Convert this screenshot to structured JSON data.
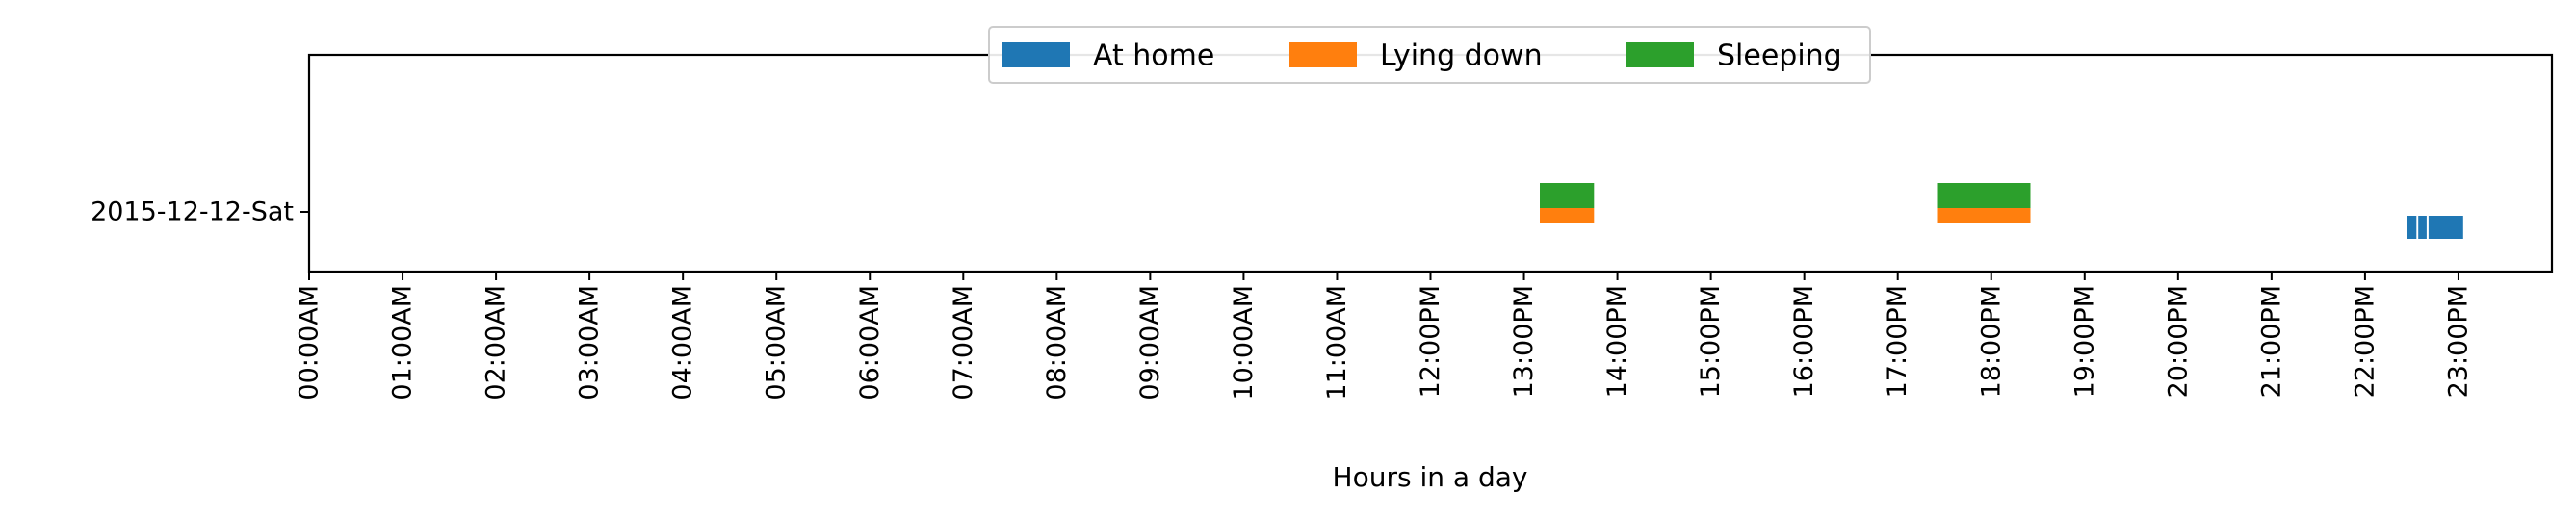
{
  "chart_data": {
    "type": "broken-barh",
    "title": "",
    "xlabel": "Hours in a day",
    "ylabel": "",
    "xlim": [
      0,
      24
    ],
    "x_unit": "hour of day",
    "x_tick_labels": [
      "00:00AM",
      "01:00AM",
      "02:00AM",
      "03:00AM",
      "04:00AM",
      "05:00AM",
      "06:00AM",
      "07:00AM",
      "08:00AM",
      "09:00AM",
      "10:00AM",
      "11:00AM",
      "12:00PM",
      "13:00PM",
      "14:00PM",
      "15:00PM",
      "16:00PM",
      "17:00PM",
      "18:00PM",
      "19:00PM",
      "20:00PM",
      "21:00PM",
      "22:00PM",
      "23:00PM"
    ],
    "x_tick_values": [
      0,
      1,
      2,
      3,
      4,
      5,
      6,
      7,
      8,
      9,
      10,
      11,
      12,
      13,
      14,
      15,
      16,
      17,
      18,
      19,
      20,
      21,
      22,
      23
    ],
    "categories": [
      "2015-12-12-Sat"
    ],
    "legend": {
      "placement": "top-center",
      "columns": 3
    },
    "grid": false,
    "series": [
      {
        "name": "At home",
        "color": "#1f77b4",
        "intervals": [
          [
            22.45,
            22.55
          ],
          [
            22.57,
            22.66
          ],
          [
            22.68,
            23.05
          ]
        ]
      },
      {
        "name": "Lying down",
        "color": "#ff7f0e",
        "intervals": [
          [
            13.17,
            13.75
          ],
          [
            17.42,
            18.42
          ]
        ]
      },
      {
        "name": "Sleeping",
        "color": "#2ca02c",
        "intervals": [
          [
            13.17,
            13.75
          ],
          [
            17.42,
            18.42
          ]
        ]
      }
    ]
  }
}
